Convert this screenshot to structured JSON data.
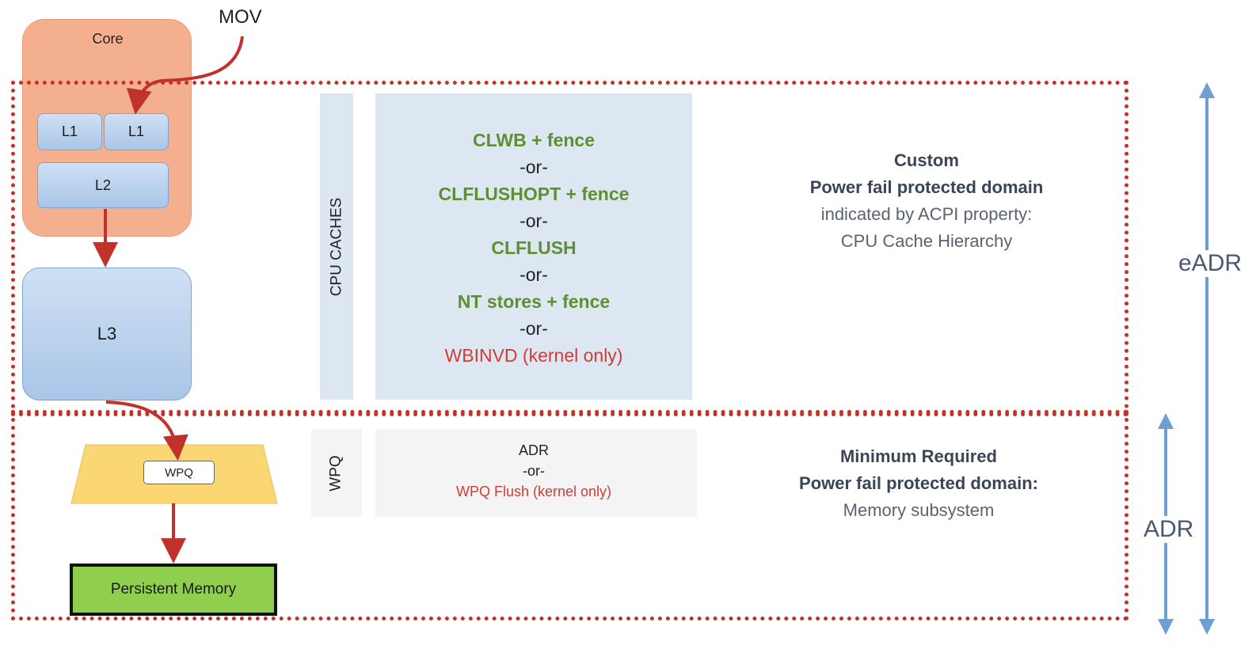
{
  "core": {
    "title": "Core"
  },
  "mov_label": "MOV",
  "caches": {
    "l1_left": "L1",
    "l1_right": "L1",
    "l2": "L2",
    "l3": "L3"
  },
  "cpu_caches_label": "CPU CACHES",
  "wpq_side_label": "WPQ",
  "wpq_box_label": "WPQ",
  "persistent_memory": "Persistent Memory",
  "cpu_cache_instructions": [
    {
      "text": "CLWB + fence",
      "style": "green"
    },
    {
      "text": "-or-",
      "style": "black"
    },
    {
      "text": "CLFLUSHOPT + fence",
      "style": "green"
    },
    {
      "text": "-or-",
      "style": "black"
    },
    {
      "text": "CLFLUSH",
      "style": "green"
    },
    {
      "text": "-or-",
      "style": "black"
    },
    {
      "text": "NT stores + fence",
      "style": "green"
    },
    {
      "text": "-or-",
      "style": "black"
    },
    {
      "text": "WBINVD (kernel only)",
      "style": "red"
    }
  ],
  "wpq_instructions": {
    "line1": "ADR",
    "line2": "-or-",
    "line3": "WPQ Flush (kernel only)"
  },
  "custom_domain": {
    "line1": "Custom",
    "line2": "Power fail protected domain",
    "line3": "indicated by ACPI property:",
    "line4": "CPU Cache Hierarchy"
  },
  "minimum_domain": {
    "line1": "Minimum Required",
    "line2": "Power fail protected domain:",
    "line3": "Memory subsystem"
  },
  "eadr_label": "eADR",
  "adr_label": "ADR",
  "colors": {
    "arrow_red": "#c0322b",
    "domain_dotted": "#c0322b",
    "side_arrow_blue": "#6f9fd2",
    "instruction_green": "#5e8f32",
    "instruction_red": "#d13c34"
  }
}
